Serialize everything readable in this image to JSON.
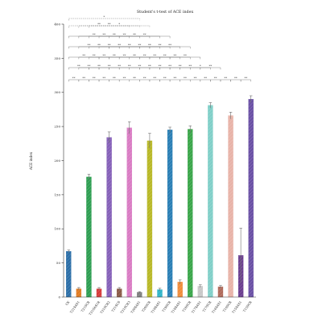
{
  "chart_data": {
    "type": "bar",
    "title": "Student's t-test of ACE index",
    "xlabel": "",
    "ylabel": "ACE index",
    "ylim": [
      0,
      400
    ],
    "yticks": [
      0,
      50,
      100,
      150,
      200,
      250,
      300,
      350,
      400
    ],
    "grid": false,
    "legend": "none",
    "categories": [
      "CK",
      "T21SAS1",
      "T21SCR",
      "T21SAS1R",
      "T21SCR2",
      "T21SCS",
      "T21SCR3",
      "T20SAS1",
      "T20SCR",
      "T19SAS1",
      "T19SCR",
      "T18SAS1",
      "T18SCR",
      "T17SAS1",
      "T17SCR",
      "T16SAS1",
      "T16SCR",
      "T15SAS1",
      "T15SCR"
    ],
    "values": [
      67,
      12,
      176,
      12,
      234,
      12,
      248,
      7,
      229,
      11,
      245,
      22,
      246,
      16,
      281,
      15,
      266,
      61,
      290
    ],
    "errors": [
      2,
      2,
      4,
      2,
      8,
      2,
      9,
      1,
      11,
      2,
      4,
      3,
      5,
      2,
      4,
      2,
      5,
      40,
      5
    ],
    "colors": [
      "#2c6fa8",
      "#e07b22",
      "#2e9e52",
      "#d63a3a",
      "#8560b8",
      "#8a5a47",
      "#d97bc3",
      "#7f7f7f",
      "#b8b826",
      "#2fb4c8",
      "#2a7fb5",
      "#f08c3a",
      "#3aa64a",
      "#c8c8c8",
      "#80cfc8",
      "#b06a5a",
      "#e8b3a8",
      "#6a3d8f",
      "#6a50a5"
    ],
    "significance_rows": [
      [
        "**",
        "**",
        "**",
        "**",
        "**",
        "**",
        "**",
        "**",
        "**",
        "**",
        "**",
        "**",
        "**",
        "**",
        "**",
        "**",
        "**",
        "**"
      ],
      [
        "**",
        "**",
        "**",
        "**",
        "**",
        "**",
        "**",
        "**",
        "**",
        "**",
        "**",
        "**",
        "*",
        "**"
      ],
      [
        "**",
        "**",
        "**",
        "**",
        "**",
        "**",
        "**",
        "**",
        "**",
        "**",
        "**"
      ],
      [
        "**",
        "**",
        "**",
        "**",
        "**",
        "**",
        "**",
        "**",
        "**"
      ],
      [
        "**",
        "**",
        "**",
        "**",
        "**",
        "**"
      ],
      [
        "**",
        "**",
        "*"
      ],
      [
        "*"
      ]
    ]
  }
}
